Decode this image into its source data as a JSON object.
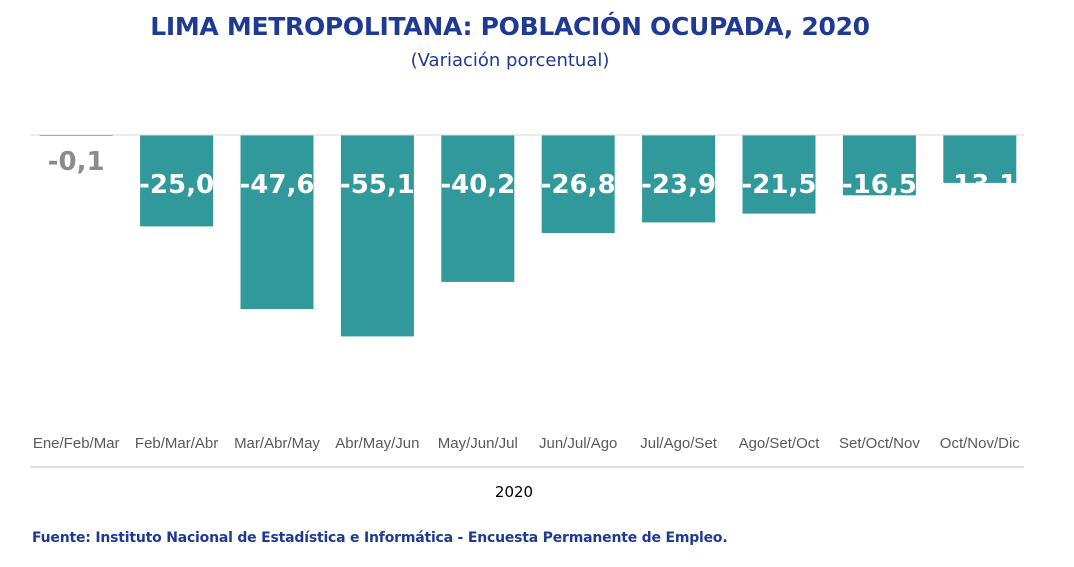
{
  "chart_data": {
    "type": "bar",
    "title": "LIMA METROPOLITANA: POBLACIÓN OCUPADA, 2020",
    "subtitle": "(Variación porcentual)",
    "xlabel": "2020",
    "ylabel": "",
    "categories": [
      "Ene/Feb/Mar",
      "Feb/Mar/Abr",
      "Mar/Abr/May",
      "Abr/May/Jun",
      "May/Jun/Jul",
      "Jun/Jul/Ago",
      "Jul/Ago/Set",
      "Ago/Set/Oct",
      "Set/Oct/Nov",
      "Oct/Nov/Dic"
    ],
    "values": [
      -0.1,
      -25.0,
      -47.6,
      -55.1,
      -40.2,
      -26.8,
      -23.9,
      -21.5,
      -16.5,
      -13.1
    ],
    "value_labels": [
      "-0,1",
      "-25,0",
      "-47,6",
      "-55,1",
      "-40,2",
      "-26,8",
      "-23,9",
      "-21,5",
      "-16,5",
      "-13,1"
    ],
    "ylim": [
      -60,
      0
    ],
    "grid": false,
    "legend": "none",
    "colors": {
      "bar": "#31999b",
      "small_label": "#8c8c8c",
      "label": "#ffffff"
    }
  },
  "source": "Fuente: Instituto Nacional de Estadística e Informática - Encuesta Permanente de Empleo."
}
